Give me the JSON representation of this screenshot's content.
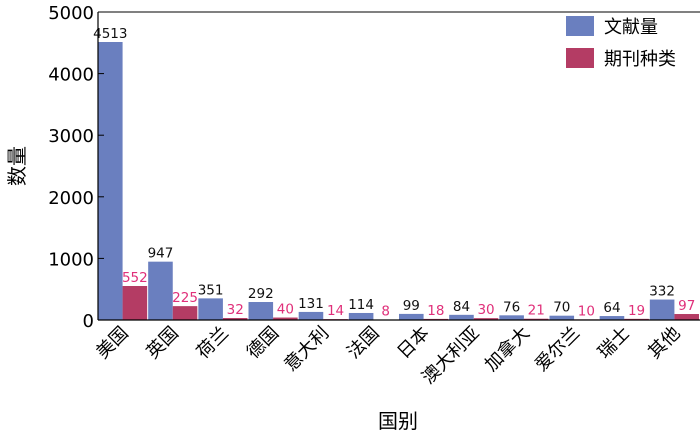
{
  "chart_data": {
    "type": "bar",
    "categories": [
      "美国",
      "英国",
      "荷兰",
      "德国",
      "意大利",
      "法国",
      "日本",
      "澳大利亚",
      "加拿大",
      "爱尔兰",
      "瑞士",
      "其他"
    ],
    "series": [
      {
        "name": "文献量",
        "values": [
          4513,
          947,
          351,
          292,
          131,
          114,
          99,
          84,
          76,
          70,
          64,
          332
        ],
        "color": "#6a7fbf"
      },
      {
        "name": "期刊种类",
        "values": [
          552,
          225,
          32,
          40,
          14,
          8,
          18,
          30,
          21,
          10,
          19,
          97
        ],
        "color": "#b43c64",
        "label_color": "#e0307a"
      }
    ],
    "xlabel": "国别",
    "ylabel": "数量",
    "ylim": [
      0,
      5000
    ],
    "yticks": [
      0,
      1000,
      2000,
      3000,
      4000,
      5000
    ],
    "legend_position": "top-right",
    "grid": false
  }
}
